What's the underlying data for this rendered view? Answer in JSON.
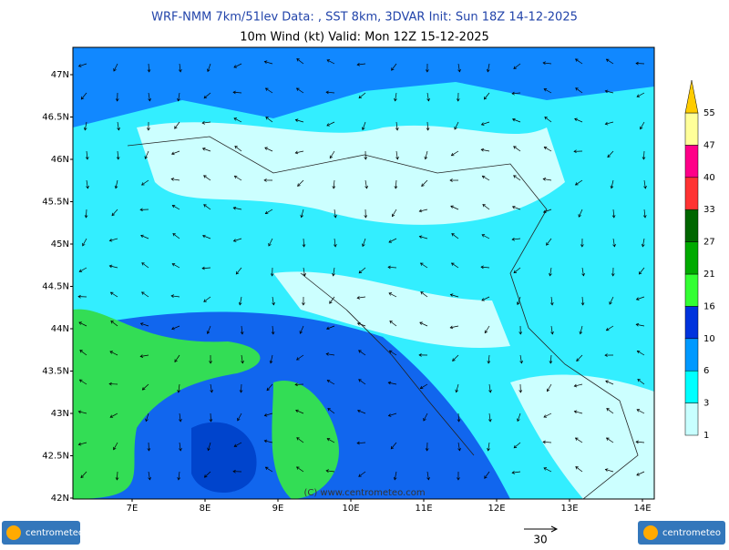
{
  "header": {
    "line1": "WRF-NMM 7km/51lev   Data: , SST 8km, 3DVAR   Init: Sun 18Z 14-12-2025",
    "line2": "10m Wind (kt)  Valid: Mon 12Z 15-12-2025"
  },
  "map": {
    "lat_labels": [
      "47N",
      "46.5N",
      "46N",
      "45.5N",
      "45N",
      "44.5N",
      "44N",
      "43.5N",
      "43N",
      "42.5N",
      "42N"
    ],
    "lon_labels": [
      "7E",
      "8E",
      "9E",
      "10E",
      "11E",
      "12E",
      "13E",
      "14E"
    ],
    "watermark": "(C) www.centrometeo.com"
  },
  "colorbar": {
    "labels": [
      1,
      3,
      6,
      10,
      16,
      21,
      27,
      33,
      40,
      47,
      55
    ],
    "colors": [
      "#c8ffff",
      "#00ffff",
      "#0099ff",
      "#0033dd",
      "#33ff33",
      "#00aa00",
      "#006600",
      "#ff3333",
      "#ff0088",
      "#ffff99"
    ],
    "top_color": "#ffcc00"
  },
  "reference_vector": {
    "label": "30"
  },
  "logos": {
    "left": "centrometeo",
    "right": "centrometeo"
  }
}
